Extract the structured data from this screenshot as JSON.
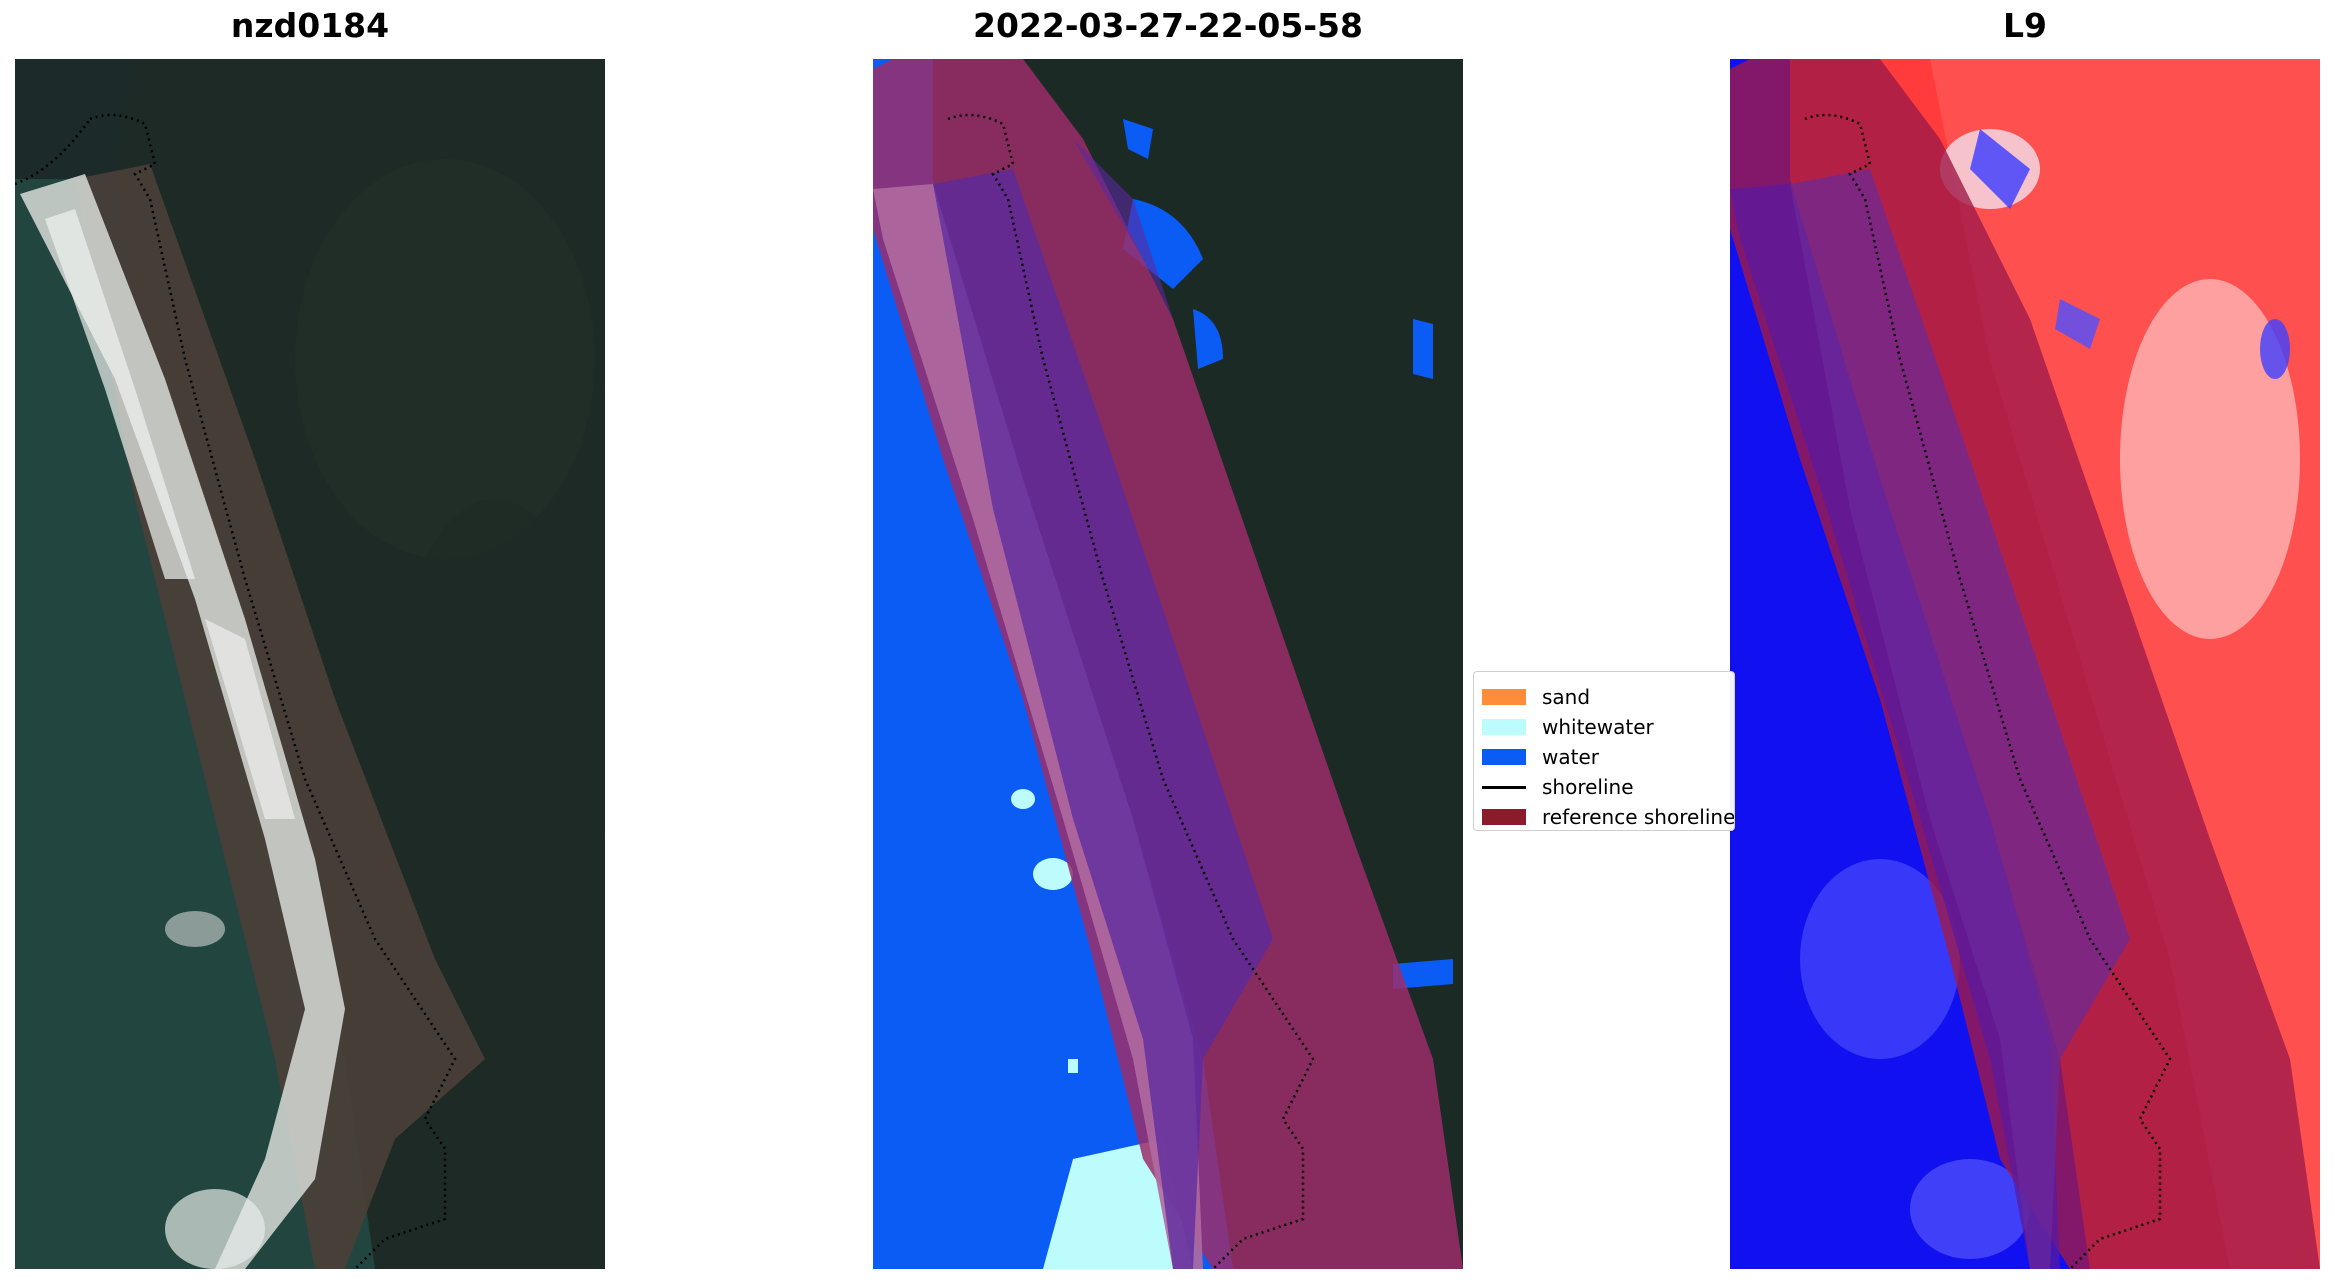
{
  "panels": {
    "left": {
      "title": "nzd0184"
    },
    "middle": {
      "title": "2022-03-27-22-05-58"
    },
    "right": {
      "title": "L9"
    }
  },
  "legend": {
    "items": [
      {
        "label": "sand",
        "color": "#ff8c3a"
      },
      {
        "label": "whitewater",
        "color": "#bdfcfc"
      },
      {
        "label": "water",
        "color": "#0b5cf5"
      },
      {
        "label": "shoreline",
        "color": "#000000"
      },
      {
        "label": "reference shoreline",
        "color": "#8b1a2a"
      }
    ]
  }
}
